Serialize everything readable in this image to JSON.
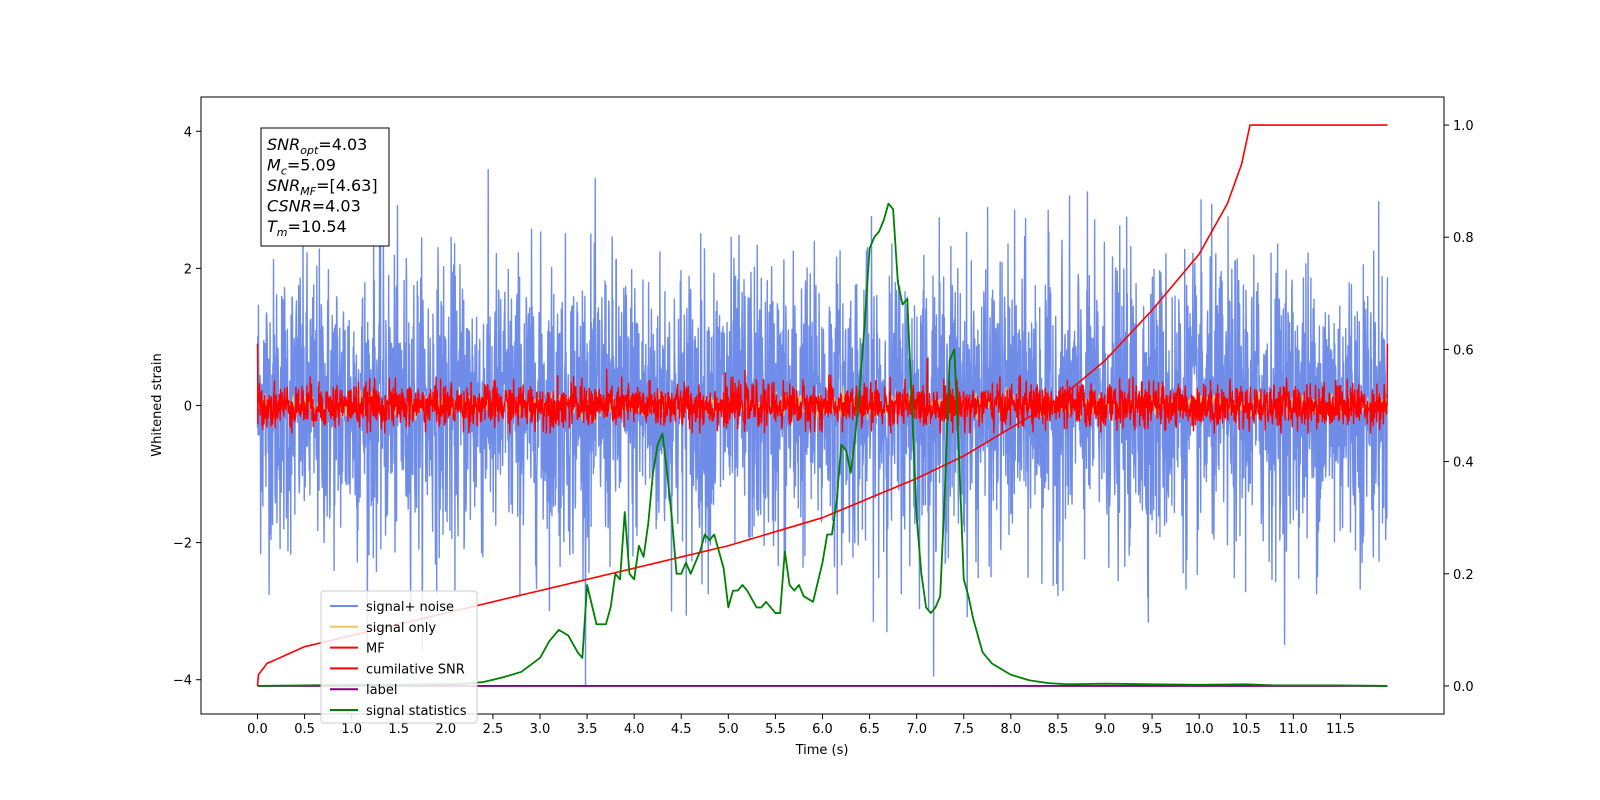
{
  "chart_data": {
    "type": "line",
    "title": "",
    "xlabel": "Time (s)",
    "ylabel": "Whitened strain",
    "y2label": "",
    "xlim": [
      -0.6,
      12.6
    ],
    "ylim": [
      -4.5,
      4.5
    ],
    "y2lim": [
      -0.05,
      1.05
    ],
    "xticks": [
      "0.0",
      "0.5",
      "1.0",
      "1.5",
      "2.0",
      "2.5",
      "3.0",
      "3.5",
      "4.0",
      "4.5",
      "5.0",
      "5.5",
      "6.0",
      "6.5",
      "7.0",
      "7.5",
      "8.0",
      "8.5",
      "9.0",
      "9.5",
      "10.0",
      "10.5",
      "11.0",
      "11.5"
    ],
    "yticks": [
      "4",
      "2",
      "0",
      "−2",
      "−4"
    ],
    "y2ticks": [
      "1.0",
      "0.8",
      "0.6",
      "0.4",
      "0.2",
      "0.0"
    ],
    "grid": false,
    "legend_position": "lower-left",
    "legend": [
      "signal+ noise",
      "signal only",
      "MF",
      "cumilative SNR",
      "label",
      "signal statistics"
    ],
    "annotation": {
      "lines": [
        {
          "sym": "SNR",
          "sub": "opt",
          "value": "=4.03"
        },
        {
          "sym": "M",
          "sub": "c",
          "value": "=5.09"
        },
        {
          "sym": "SNR",
          "sub": "MF",
          "value": "=[4.63]"
        },
        {
          "sym": "CSNR",
          "sub": "",
          "value": "=4.03"
        },
        {
          "sym": "T",
          "sub": "m",
          "value": "=10.54"
        }
      ]
    },
    "series": [
      {
        "name": "signal+ noise",
        "color": "#6f8de8",
        "axis": "left",
        "x_range": [
          0.0,
          12.0
        ],
        "y_approx_range": [
          -4.1,
          4.0
        ],
        "note_values": "dense noise, std about 1"
      },
      {
        "name": "signal only",
        "color": "#f5c26b",
        "axis": "left",
        "x_range": [
          0.0,
          12.0
        ],
        "y_approx_range": [
          -0.4,
          0.4
        ]
      },
      {
        "name": "MF",
        "color": "#ff0000",
        "axis": "left",
        "x_range": [
          0.0,
          12.0
        ],
        "y_approx_range": [
          -0.4,
          0.9
        ]
      },
      {
        "name": "cumilative SNR",
        "color": "#ff0000",
        "axis": "right",
        "x": [
          0.0,
          0.01,
          0.1,
          0.5,
          1.0,
          2.0,
          3.0,
          4.0,
          5.0,
          6.0,
          7.0,
          7.5,
          8.0,
          8.5,
          9.0,
          9.5,
          10.0,
          10.3,
          10.45,
          10.54,
          12.0
        ],
        "y": [
          0.0,
          0.02,
          0.04,
          0.07,
          0.09,
          0.13,
          0.17,
          0.21,
          0.25,
          0.3,
          0.37,
          0.41,
          0.46,
          0.51,
          0.58,
          0.67,
          0.77,
          0.86,
          0.93,
          1.0,
          1.0
        ]
      },
      {
        "name": "label",
        "color": "#800080",
        "axis": "right",
        "x": [
          0.0,
          12.0
        ],
        "y": [
          0.0,
          0.0
        ]
      },
      {
        "name": "signal statistics",
        "color": "#008000",
        "axis": "right",
        "x": [
          0.0,
          0.5,
          1.0,
          1.5,
          2.0,
          2.2,
          2.4,
          2.6,
          2.8,
          3.0,
          3.1,
          3.2,
          3.3,
          3.4,
          3.45,
          3.5,
          3.6,
          3.7,
          3.75,
          3.8,
          3.85,
          3.9,
          3.95,
          4.0,
          4.05,
          4.1,
          4.15,
          4.2,
          4.25,
          4.3,
          4.35,
          4.4,
          4.45,
          4.5,
          4.55,
          4.6,
          4.7,
          4.75,
          4.8,
          4.85,
          4.9,
          4.95,
          5.0,
          5.05,
          5.1,
          5.15,
          5.2,
          5.3,
          5.35,
          5.4,
          5.5,
          5.55,
          5.6,
          5.65,
          5.7,
          5.75,
          5.8,
          5.9,
          6.0,
          6.05,
          6.1,
          6.15,
          6.2,
          6.25,
          6.3,
          6.35,
          6.4,
          6.45,
          6.5,
          6.55,
          6.6,
          6.65,
          6.7,
          6.75,
          6.8,
          6.85,
          6.9,
          6.95,
          7.0,
          7.05,
          7.1,
          7.15,
          7.2,
          7.25,
          7.3,
          7.35,
          7.4,
          7.45,
          7.5,
          7.55,
          7.6,
          7.65,
          7.7,
          7.8,
          7.9,
          8.0,
          8.2,
          8.4,
          8.6,
          9.0,
          9.5,
          10.0,
          10.5,
          10.8,
          11.0,
          11.5,
          12.0
        ],
        "y": [
          0.0,
          0.001,
          0.002,
          0.002,
          0.003,
          0.004,
          0.007,
          0.015,
          0.025,
          0.05,
          0.08,
          0.1,
          0.09,
          0.06,
          0.05,
          0.18,
          0.11,
          0.11,
          0.14,
          0.2,
          0.19,
          0.31,
          0.2,
          0.19,
          0.25,
          0.23,
          0.29,
          0.38,
          0.43,
          0.45,
          0.38,
          0.3,
          0.2,
          0.2,
          0.22,
          0.2,
          0.24,
          0.27,
          0.26,
          0.27,
          0.24,
          0.21,
          0.14,
          0.17,
          0.17,
          0.18,
          0.17,
          0.14,
          0.14,
          0.15,
          0.13,
          0.13,
          0.24,
          0.18,
          0.17,
          0.18,
          0.16,
          0.15,
          0.22,
          0.27,
          0.27,
          0.33,
          0.43,
          0.42,
          0.38,
          0.45,
          0.54,
          0.65,
          0.78,
          0.8,
          0.81,
          0.83,
          0.86,
          0.85,
          0.72,
          0.68,
          0.69,
          0.5,
          0.3,
          0.2,
          0.14,
          0.13,
          0.14,
          0.16,
          0.35,
          0.58,
          0.6,
          0.41,
          0.19,
          0.16,
          0.12,
          0.09,
          0.06,
          0.04,
          0.03,
          0.02,
          0.01,
          0.005,
          0.003,
          0.004,
          0.003,
          0.002,
          0.003,
          0.001,
          0.001,
          0.001,
          0.0
        ]
      }
    ]
  }
}
